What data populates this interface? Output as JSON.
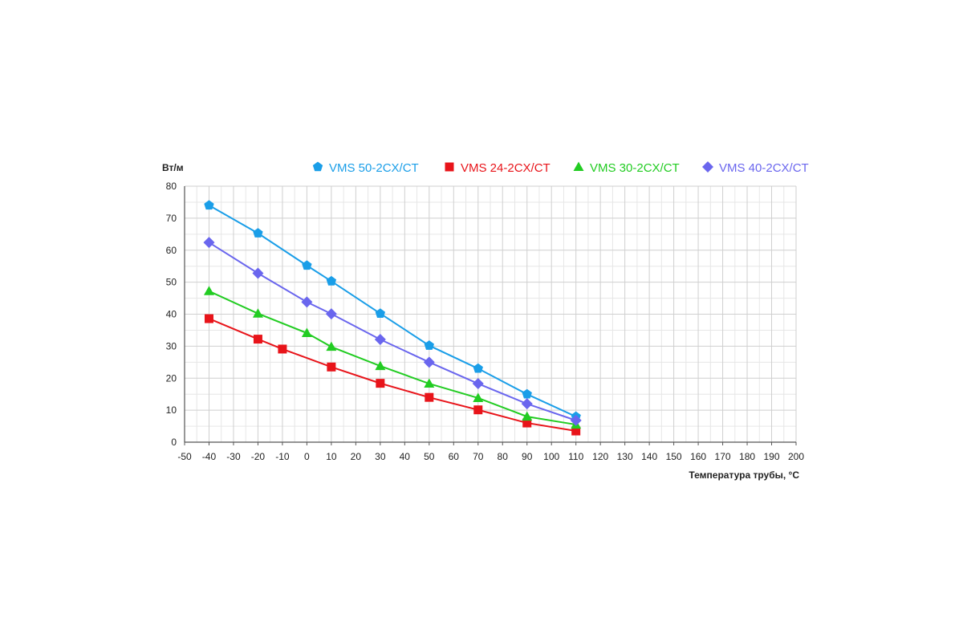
{
  "chart_data": {
    "type": "line",
    "ylabel": "Вт/м",
    "xlabel": "Температура трубы, °C",
    "xlim": [
      -50,
      200
    ],
    "ylim": [
      0,
      80
    ],
    "xticks": [
      -50,
      -40,
      -30,
      -20,
      -10,
      0,
      10,
      20,
      30,
      40,
      50,
      60,
      70,
      80,
      90,
      100,
      110,
      120,
      130,
      140,
      150,
      160,
      170,
      180,
      190,
      200
    ],
    "yticks": [
      0,
      10,
      20,
      30,
      40,
      50,
      60,
      70,
      80
    ],
    "grid": true,
    "legend_position": "top",
    "series": [
      {
        "name": "VMS 50-2CX/CT",
        "color": "#1a9ee8",
        "marker": "pentagon",
        "x": [
          -40,
          -20,
          0,
          10,
          30,
          50,
          70,
          90,
          110
        ],
        "y": [
          74,
          65.3,
          55.2,
          50.3,
          40.2,
          30.2,
          23,
          15,
          8
        ]
      },
      {
        "name": "VMS 24-2CX/CT",
        "color": "#e8141a",
        "marker": "square",
        "x": [
          -40,
          -20,
          -10,
          10,
          30,
          50,
          70,
          90,
          110
        ],
        "y": [
          38.6,
          32.2,
          29.1,
          23.5,
          18.4,
          14,
          10.1,
          6,
          3.5
        ]
      },
      {
        "name": "VMS 30-2CX/CT",
        "color": "#22cc22",
        "marker": "triangle",
        "x": [
          -40,
          -20,
          0,
          10,
          30,
          50,
          70,
          90,
          110
        ],
        "y": [
          47.2,
          40.2,
          34.1,
          29.8,
          23.8,
          18.3,
          13.8,
          8,
          5.5
        ]
      },
      {
        "name": "VMS 40-2CX/CT",
        "color": "#6a66ee",
        "marker": "diamond",
        "x": [
          -40,
          -20,
          0,
          10,
          30,
          50,
          70,
          90,
          110
        ],
        "y": [
          62.4,
          52.8,
          43.8,
          40.1,
          32.1,
          25,
          18.3,
          12,
          6.8
        ]
      }
    ]
  }
}
